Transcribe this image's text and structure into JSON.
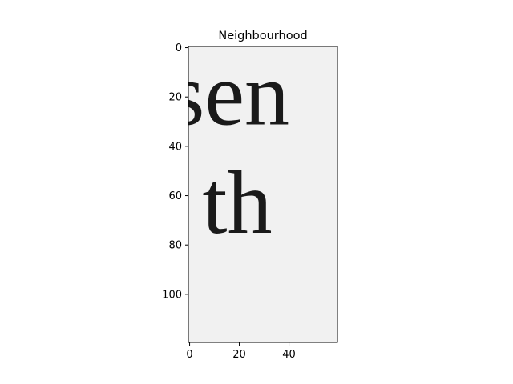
{
  "chart_data": {
    "type": "image",
    "title": "Neighbourhood",
    "xlim": [
      -0.5,
      59.5
    ],
    "ylim": [
      119.5,
      -0.5
    ],
    "x_ticks": [
      0,
      20,
      40
    ],
    "y_ticks": [
      0,
      20,
      40,
      60,
      80,
      100
    ],
    "image_content": {
      "text_lines": [
        {
          "text": "sen",
          "row": 22
        },
        {
          "text": "n th",
          "row": 66
        }
      ],
      "background_color": "#f1f1f1",
      "ink_color": "#1a1a1a"
    },
    "grid": false
  }
}
